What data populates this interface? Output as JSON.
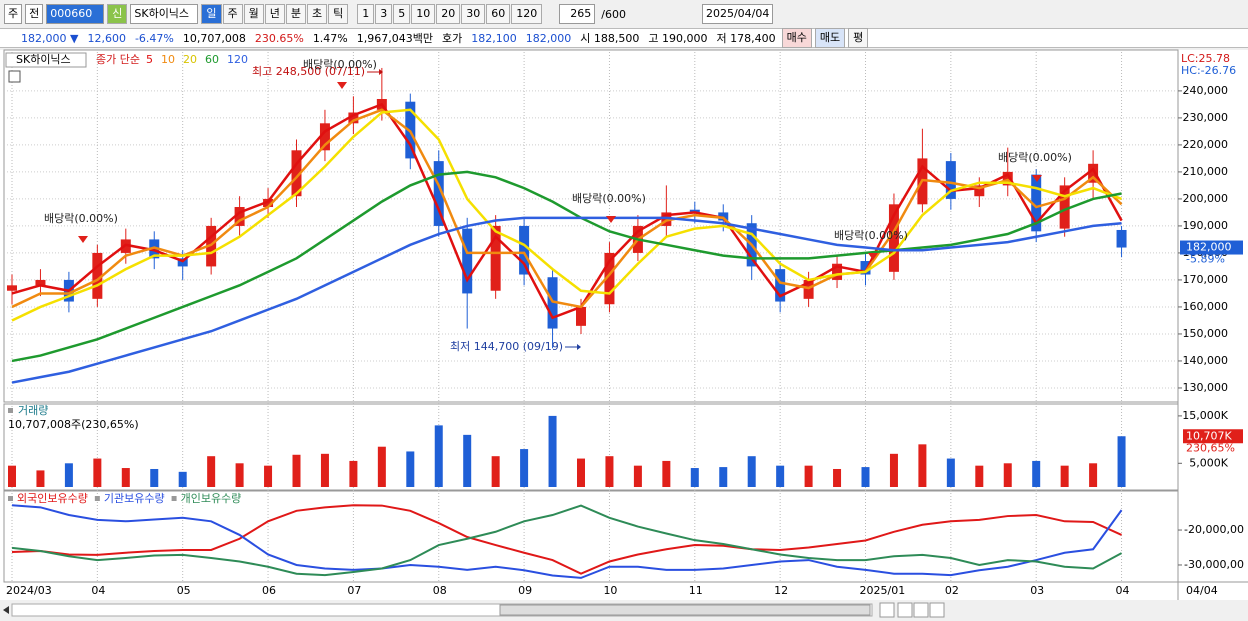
{
  "toolbar": {
    "market": "주",
    "view": "전",
    "code": "000660",
    "badge": "신",
    "name": "SK하이닉스",
    "periods": [
      "일",
      "주",
      "월",
      "년",
      "분",
      "초",
      "틱"
    ],
    "intervals": [
      "1",
      "3",
      "5",
      "10",
      "20",
      "30",
      "60",
      "120"
    ],
    "count": "265",
    "max": "/600",
    "date": "2025/04/04"
  },
  "quote": {
    "price": "182,000 ▼",
    "change": "12,600",
    "rate": "-6.47%",
    "volume": "10,707,008",
    "volume_rate": "230.65%",
    "turnover": "1.47%",
    "amount": "1,967,043백만",
    "ask_label": "호가",
    "ask": "182,100",
    "bid": "182,000",
    "open": "시 188,500",
    "high": "고 190,000",
    "low": "저 178,400",
    "buy": "매수",
    "sell": "매도",
    "avg": "평"
  },
  "chart_data": [
    {
      "type": "candlestick",
      "name_label": "SK하이닉스",
      "legend_prefix": "종가 단순",
      "lc": "LC:25.78",
      "hc": "HC:-26.76",
      "last_label": "182,000",
      "last_change": "-5.89%",
      "x_end_label": "04/04",
      "categories": [
        "2024/03",
        null,
        null,
        "04",
        null,
        null,
        "05",
        null,
        null,
        "06",
        null,
        null,
        "07",
        null,
        null,
        "08",
        null,
        null,
        "09",
        null,
        null,
        "10",
        null,
        null,
        "11",
        null,
        null,
        "12",
        null,
        null,
        "2025/01",
        null,
        null,
        "02",
        null,
        null,
        "03",
        null,
        null,
        "04"
      ],
      "open": [
        166000,
        168000,
        170000,
        163000,
        180000,
        185000,
        178000,
        175000,
        190000,
        197000,
        201000,
        218000,
        228000,
        233000,
        236000,
        214000,
        189000,
        166000,
        190000,
        171000,
        153000,
        161000,
        180000,
        190000,
        196000,
        195000,
        191000,
        174000,
        163000,
        170000,
        177000,
        173000,
        198000,
        214000,
        201000,
        205000,
        209000,
        189000,
        206000,
        188500
      ],
      "high": [
        172000,
        174000,
        173000,
        183000,
        189000,
        188000,
        181000,
        193000,
        201000,
        204000,
        222000,
        233000,
        238000,
        248500,
        239000,
        218000,
        193000,
        194000,
        193000,
        174000,
        163000,
        184000,
        194000,
        205000,
        199000,
        198000,
        194000,
        177000,
        173000,
        179000,
        180000,
        202000,
        226000,
        217000,
        208000,
        219000,
        211000,
        208000,
        218000,
        190000
      ],
      "low": [
        161000,
        164000,
        158000,
        160000,
        176000,
        174000,
        170000,
        172000,
        186000,
        193000,
        197000,
        214000,
        224000,
        229000,
        211000,
        186000,
        152000,
        163000,
        168000,
        144700,
        150000,
        158000,
        177000,
        186000,
        191000,
        188000,
        170000,
        158000,
        160000,
        167000,
        168000,
        170000,
        195000,
        196000,
        197000,
        201000,
        184000,
        186000,
        200000,
        178400
      ],
      "close": [
        168000,
        170000,
        162000,
        180000,
        185000,
        178000,
        175000,
        190000,
        197000,
        200000,
        218000,
        228000,
        232000,
        237000,
        215000,
        190000,
        165000,
        190000,
        172000,
        152000,
        160000,
        180000,
        190000,
        195000,
        195000,
        192000,
        175000,
        162000,
        170000,
        176000,
        172000,
        198000,
        215000,
        200000,
        205000,
        210000,
        188000,
        205000,
        213000,
        182000
      ],
      "up_color": "#e0201a",
      "down_color": "#1f5fd6",
      "series": [
        {
          "name": "5",
          "color": "#e01010",
          "values": [
            165000,
            168000,
            166000,
            175000,
            183000,
            181000,
            177000,
            186000,
            195000,
            199000,
            213000,
            225000,
            231000,
            235000,
            220000,
            196000,
            170000,
            186000,
            176000,
            156000,
            160000,
            177000,
            188000,
            194000,
            195000,
            193000,
            178000,
            164000,
            169000,
            175000,
            173000,
            194000,
            212000,
            203000,
            204000,
            209000,
            191000,
            203000,
            211000,
            192000
          ]
        },
        {
          "name": "10",
          "color": "#f08a10",
          "values": [
            160000,
            165000,
            165000,
            170000,
            179000,
            182000,
            179000,
            183000,
            192000,
            197000,
            208000,
            220000,
            229000,
            233000,
            225000,
            205000,
            180000,
            180000,
            180000,
            162000,
            160000,
            172000,
            185000,
            192000,
            194000,
            193000,
            183000,
            169000,
            167000,
            172000,
            173000,
            188000,
            207000,
            206000,
            204000,
            207000,
            197000,
            200000,
            208000,
            198000
          ]
        },
        {
          "name": "20",
          "color": "#f5e000",
          "values": [
            155000,
            160000,
            164000,
            168000,
            174000,
            179000,
            179000,
            180000,
            186000,
            194000,
            202000,
            212000,
            223000,
            232000,
            233000,
            222000,
            200000,
            188000,
            183000,
            174000,
            166000,
            165000,
            176000,
            186000,
            189000,
            190000,
            187000,
            176000,
            170000,
            172000,
            173000,
            180000,
            194000,
            203000,
            206000,
            206000,
            204000,
            201000,
            204000,
            200000
          ]
        },
        {
          "name": "60",
          "color": "#1e9a2e",
          "values": [
            140000,
            142000,
            145000,
            148000,
            152000,
            156000,
            160000,
            164000,
            168000,
            173000,
            178000,
            185000,
            192000,
            199000,
            205000,
            209000,
            210000,
            208000,
            204000,
            199000,
            193000,
            188000,
            185000,
            183000,
            181000,
            179000,
            178000,
            178000,
            178000,
            179000,
            180000,
            181000,
            182000,
            183000,
            185000,
            187000,
            191000,
            196000,
            200000,
            202000
          ]
        },
        {
          "name": "120",
          "color": "#2f5fe0",
          "values": [
            132000,
            134000,
            136000,
            139000,
            142000,
            145000,
            148000,
            151000,
            155000,
            159000,
            163000,
            168000,
            173000,
            178000,
            183000,
            187000,
            190000,
            192000,
            193000,
            193000,
            193000,
            193000,
            193000,
            193000,
            192000,
            191000,
            189000,
            187000,
            185000,
            183000,
            182000,
            181000,
            181000,
            182000,
            183000,
            184000,
            186000,
            188000,
            190000,
            191000
          ]
        }
      ],
      "ylim": [
        124800,
        250700
      ],
      "yticks": [
        {
          "value": 130000,
          "label": "130,000"
        },
        {
          "value": 140000,
          "label": "140,000"
        },
        {
          "value": 150000,
          "label": "150,000"
        },
        {
          "value": 160000,
          "label": "160,000"
        },
        {
          "value": 170000,
          "label": "170,000"
        },
        {
          "value": 180000,
          "label": "180,000"
        },
        {
          "value": 190000,
          "label": "190,000"
        },
        {
          "value": 200000,
          "label": "200,000"
        },
        {
          "value": 210000,
          "label": "210,000"
        },
        {
          "value": 220000,
          "label": "220,000"
        },
        {
          "value": 230000,
          "label": "230,000"
        },
        {
          "value": 240000,
          "label": "240,000"
        }
      ],
      "grid": true,
      "annotations": [
        "최고 248,500 (07/11)",
        "최저 144,700 (09/19)",
        "배당락(0.00%)",
        "배당락(0.00%)",
        "배당락(0.00%)",
        "배당락(0.00%)",
        "배당락(0.00%)"
      ]
    },
    {
      "type": "bar",
      "title": "거래량",
      "subtitle": "10,707,008주(230,65%)",
      "last_label": "10,707K",
      "last_rate": "230,65%",
      "values": [
        4500,
        3500,
        5000,
        6000,
        4000,
        3800,
        3200,
        6500,
        5000,
        4500,
        6800,
        7000,
        5500,
        8500,
        7500,
        13000,
        11000,
        6500,
        8000,
        15000,
        6000,
        6500,
        4500,
        5500,
        4000,
        4200,
        6500,
        4500,
        4500,
        3800,
        4200,
        7000,
        9000,
        6000,
        4500,
        5000,
        5500,
        4500,
        5000,
        10707
      ],
      "ylim": [
        0,
        17300
      ],
      "yticks": [
        {
          "value": 5000,
          "label": "5,000K"
        },
        {
          "value": 15000,
          "label": "15,000K"
        }
      ]
    },
    {
      "type": "line",
      "series": [
        {
          "name": "외국인보유수량",
          "color": "#e01818",
          "values": [
            -2630000,
            -2600000,
            -2700000,
            -2710000,
            -2650000,
            -2600000,
            -2570000,
            -2570000,
            -2250000,
            -1750000,
            -1450000,
            -1350000,
            -1290000,
            -1300000,
            -1450000,
            -1800000,
            -2200000,
            -2430000,
            -2650000,
            -2860000,
            -3250000,
            -2900000,
            -2700000,
            -2550000,
            -2430000,
            -2450000,
            -2550000,
            -2570000,
            -2500000,
            -2400000,
            -2300000,
            -2050000,
            -1850000,
            -1750000,
            -1710000,
            -1600000,
            -1570000,
            -1750000,
            -1770000,
            -2140000
          ]
        },
        {
          "name": "기관보유수량",
          "color": "#2a4fe0",
          "values": [
            -1290000,
            -1350000,
            -1570000,
            -1710000,
            -1750000,
            -1700000,
            -1650000,
            -1750000,
            -2140000,
            -2700000,
            -3000000,
            -3100000,
            -3140000,
            -3100000,
            -3000000,
            -3050000,
            -3140000,
            -3050000,
            -3150000,
            -3300000,
            -3370000,
            -3050000,
            -3050000,
            -3140000,
            -3140000,
            -3100000,
            -3000000,
            -2900000,
            -2860000,
            -3050000,
            -3140000,
            -3250000,
            -3250000,
            -3290000,
            -3150000,
            -3050000,
            -2860000,
            -2650000,
            -2550000,
            -1430000
          ]
        },
        {
          "name": "개인보유수량",
          "color": "#2e8b57",
          "values": [
            -2510000,
            -2600000,
            -2750000,
            -2860000,
            -2800000,
            -2730000,
            -2710000,
            -2800000,
            -2900000,
            -3050000,
            -3250000,
            -3290000,
            -3200000,
            -3100000,
            -2860000,
            -2430000,
            -2250000,
            -2050000,
            -1750000,
            -1570000,
            -1300000,
            -1650000,
            -1900000,
            -2100000,
            -2290000,
            -2400000,
            -2550000,
            -2700000,
            -2800000,
            -2860000,
            -2860000,
            -2750000,
            -2710000,
            -2800000,
            -3000000,
            -2860000,
            -2900000,
            -3050000,
            -3100000,
            -2660000
          ]
        }
      ],
      "ylim": [
        -3430000,
        -940000
      ],
      "yticks": [
        {
          "value": -2000000,
          "label": "-20,000,00"
        },
        {
          "value": -3000000,
          "label": "-30,000,00"
        }
      ]
    }
  ]
}
